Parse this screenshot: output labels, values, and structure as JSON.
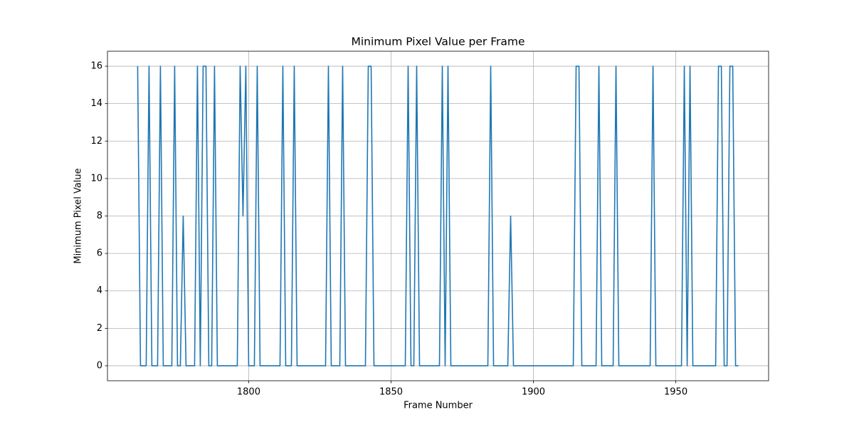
{
  "chart_data": {
    "type": "line",
    "title": "Minimum Pixel Value per Frame",
    "xlabel": "Frame Number",
    "ylabel": "Minimum Pixel Value",
    "color": "#1f77b4",
    "grid": true,
    "xlim": [
      1750.4,
      1982.6
    ],
    "ylim": [
      -0.8,
      16.8
    ],
    "xticks": [
      1800,
      1850,
      1900,
      1950
    ],
    "yticks": [
      0,
      2,
      4,
      6,
      8,
      10,
      12,
      14,
      16
    ],
    "x": [
      1761,
      1762,
      1763,
      1764,
      1765,
      1766,
      1767,
      1768,
      1769,
      1770,
      1771,
      1772,
      1773,
      1774,
      1775,
      1776,
      1777,
      1778,
      1779,
      1780,
      1781,
      1782,
      1783,
      1784,
      1785,
      1786,
      1787,
      1788,
      1789,
      1790,
      1791,
      1792,
      1793,
      1794,
      1795,
      1796,
      1797,
      1798,
      1799,
      1800,
      1801,
      1802,
      1803,
      1804,
      1805,
      1806,
      1807,
      1808,
      1809,
      1810,
      1811,
      1812,
      1813,
      1814,
      1815,
      1816,
      1817,
      1818,
      1819,
      1820,
      1821,
      1822,
      1823,
      1824,
      1825,
      1826,
      1827,
      1828,
      1829,
      1830,
      1831,
      1832,
      1833,
      1834,
      1835,
      1836,
      1837,
      1838,
      1839,
      1840,
      1841,
      1842,
      1843,
      1844,
      1845,
      1846,
      1847,
      1848,
      1849,
      1850,
      1851,
      1852,
      1853,
      1854,
      1855,
      1856,
      1857,
      1858,
      1859,
      1860,
      1861,
      1862,
      1863,
      1864,
      1865,
      1866,
      1867,
      1868,
      1869,
      1870,
      1871,
      1872,
      1873,
      1874,
      1875,
      1876,
      1877,
      1878,
      1879,
      1880,
      1881,
      1882,
      1883,
      1884,
      1885,
      1886,
      1887,
      1888,
      1889,
      1890,
      1891,
      1892,
      1893,
      1894,
      1895,
      1896,
      1897,
      1898,
      1899,
      1900,
      1901,
      1902,
      1903,
      1904,
      1905,
      1906,
      1907,
      1908,
      1909,
      1910,
      1911,
      1912,
      1913,
      1914,
      1915,
      1916,
      1917,
      1918,
      1919,
      1920,
      1921,
      1922,
      1923,
      1924,
      1925,
      1926,
      1927,
      1928,
      1929,
      1930,
      1931,
      1932,
      1933,
      1934,
      1935,
      1936,
      1937,
      1938,
      1939,
      1940,
      1941,
      1942,
      1943,
      1944,
      1945,
      1946,
      1947,
      1948,
      1949,
      1950,
      1951,
      1952,
      1953,
      1954,
      1955,
      1956,
      1957,
      1958,
      1959,
      1960,
      1961,
      1962,
      1963,
      1964,
      1965,
      1966,
      1967,
      1968,
      1969,
      1970,
      1971,
      1972
    ],
    "values": [
      16,
      0,
      0,
      0,
      16,
      0,
      0,
      0,
      16,
      0,
      0,
      0,
      0,
      16,
      0,
      0,
      8,
      0,
      0,
      0,
      0,
      16,
      0,
      16,
      16,
      0,
      0,
      16,
      0,
      0,
      0,
      0,
      0,
      0,
      0,
      0,
      16,
      8,
      16,
      0,
      0,
      0,
      16,
      0,
      0,
      0,
      0,
      0,
      0,
      0,
      0,
      16,
      0,
      0,
      0,
      16,
      0,
      0,
      0,
      0,
      0,
      0,
      0,
      0,
      0,
      0,
      0,
      16,
      0,
      0,
      0,
      0,
      16,
      0,
      0,
      0,
      0,
      0,
      0,
      0,
      0,
      16,
      16,
      0,
      0,
      0,
      0,
      0,
      0,
      0,
      0,
      0,
      0,
      0,
      0,
      16,
      0,
      0,
      16,
      0,
      0,
      0,
      0,
      0,
      0,
      0,
      0,
      16,
      0,
      16,
      0,
      0,
      0,
      0,
      0,
      0,
      0,
      0,
      0,
      0,
      0,
      0,
      0,
      0,
      16,
      0,
      0,
      0,
      0,
      0,
      0,
      8,
      0,
      0,
      0,
      0,
      0,
      0,
      0,
      0,
      0,
      0,
      0,
      0,
      0,
      0,
      0,
      0,
      0,
      0,
      0,
      0,
      0,
      0,
      16,
      16,
      0,
      0,
      0,
      0,
      0,
      0,
      16,
      0,
      0,
      0,
      0,
      0,
      16,
      0,
      0,
      0,
      0,
      0,
      0,
      0,
      0,
      0,
      0,
      0,
      0,
      16,
      0,
      0,
      0,
      0,
      0,
      0,
      0,
      0,
      0,
      0,
      16,
      0,
      16,
      0,
      0,
      0,
      0,
      0,
      0,
      0,
      0,
      0,
      16,
      16,
      0,
      0,
      16,
      16,
      0,
      0
    ]
  }
}
